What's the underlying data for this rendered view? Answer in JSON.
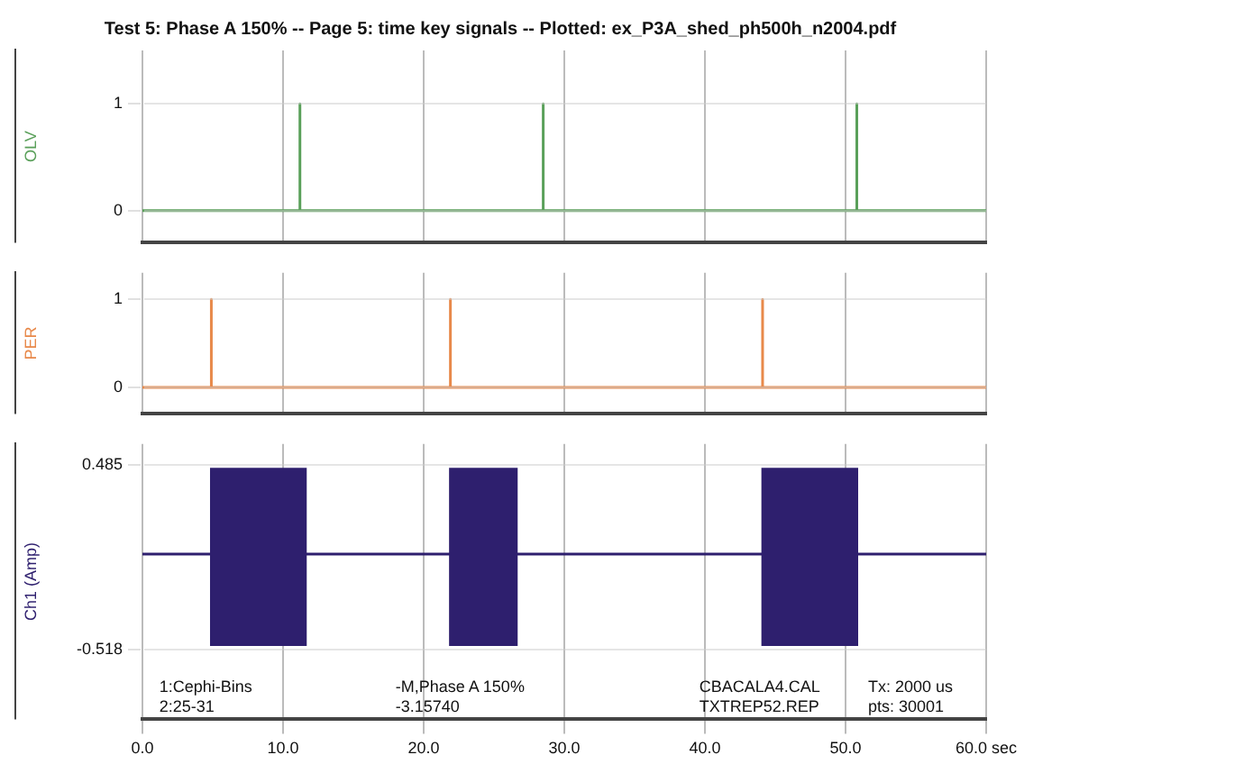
{
  "chart_data": [
    {
      "type": "line",
      "title": "Test 5: Phase A 150% -- Page 5: time key signals -- Plotted: ex_P3A_shed_ph500h_n2004.pdf",
      "ylabel": "OLV",
      "xlim": [
        0,
        60
      ],
      "xticks": [
        {
          "value": 0,
          "label": null
        },
        {
          "value": 10,
          "label": null
        },
        {
          "value": 20,
          "label": null
        },
        {
          "value": 30,
          "label": null
        },
        {
          "value": 40,
          "label": null
        },
        {
          "value": 50,
          "label": null
        },
        {
          "value": 60,
          "label": null
        }
      ],
      "ylim": [
        -0.3,
        1.5
      ],
      "yticks": [
        0,
        1
      ],
      "tick_labels": "y",
      "grid": true,
      "legend": false,
      "marker": "none",
      "series": [
        {
          "color": "#5aa05a",
          "x": [
            0,
            11.2,
            11.2,
            11.2,
            28.5,
            28.5,
            28.5,
            50.8,
            50.8,
            50.8,
            60
          ],
          "values": [
            0,
            0,
            1,
            0,
            0,
            1,
            0,
            0,
            1,
            0,
            0
          ]
        }
      ]
    },
    {
      "type": "line",
      "ylabel": "PER",
      "xlim": [
        0,
        60
      ],
      "xticks": [
        {
          "value": 0,
          "label": null
        },
        {
          "value": 10,
          "label": null
        },
        {
          "value": 20,
          "label": null
        },
        {
          "value": 30,
          "label": null
        },
        {
          "value": 40,
          "label": null
        },
        {
          "value": 50,
          "label": null
        },
        {
          "value": 60,
          "label": null
        }
      ],
      "ylim": [
        -0.3,
        1.3
      ],
      "yticks": [
        0,
        1
      ],
      "tick_labels": "y",
      "grid": true,
      "legend": false,
      "marker": "none",
      "series": [
        {
          "color": "#e8894a",
          "x": [
            0,
            4.9,
            4.9,
            4.9,
            21.9,
            21.9,
            21.9,
            44.1,
            44.1,
            44.1,
            60
          ],
          "values": [
            0,
            0,
            1,
            0,
            0,
            1,
            0,
            0,
            1,
            0,
            0
          ]
        }
      ]
    },
    {
      "type": "line",
      "ylabel": "Ch1 (Amp)",
      "xlim": [
        0,
        60
      ],
      "xticks": [
        {
          "value": 0,
          "label": "0.0"
        },
        {
          "value": 10,
          "label": "10.0"
        },
        {
          "value": 20,
          "label": "20.0"
        },
        {
          "value": 30,
          "label": "30.0"
        },
        {
          "value": 40,
          "label": "40.0"
        },
        {
          "value": 50,
          "label": "50.0"
        },
        {
          "value": 60,
          "label": "60.0 sec"
        }
      ],
      "ylim": [
        -0.9,
        0.6
      ],
      "yticks": [
        -0.518,
        0.485
      ],
      "grid": true,
      "legend": false,
      "marker": "none",
      "annotations": [
        "1:Cephi-Bins",
        "2:25-31",
        "-M,Phase A 150%",
        "-3.15740",
        "CBACALA4.CAL",
        "TXTREP52.REP",
        "Tx: 2000 us",
        "pts: 30001"
      ],
      "series": [
        {
          "color": "#2e1f6e",
          "x": [
            0,
            4.8,
            4.8,
            11.7,
            11.7,
            21.8,
            21.8,
            26.7,
            26.7,
            44.0,
            44.0,
            50.9,
            50.9,
            60
          ],
          "values": [
            0,
            0,
            0,
            0,
            0,
            0,
            0,
            0,
            0,
            0,
            0,
            0,
            0,
            0
          ],
          "lower": [
            null,
            null,
            -0.5,
            -0.5,
            null,
            null,
            -0.5,
            -0.5,
            null,
            null,
            -0.5,
            -0.5,
            null,
            null
          ],
          "upper": [
            null,
            null,
            0.47,
            0.47,
            null,
            null,
            0.47,
            0.47,
            null,
            null,
            0.47,
            0.47,
            null,
            null
          ]
        }
      ]
    }
  ]
}
